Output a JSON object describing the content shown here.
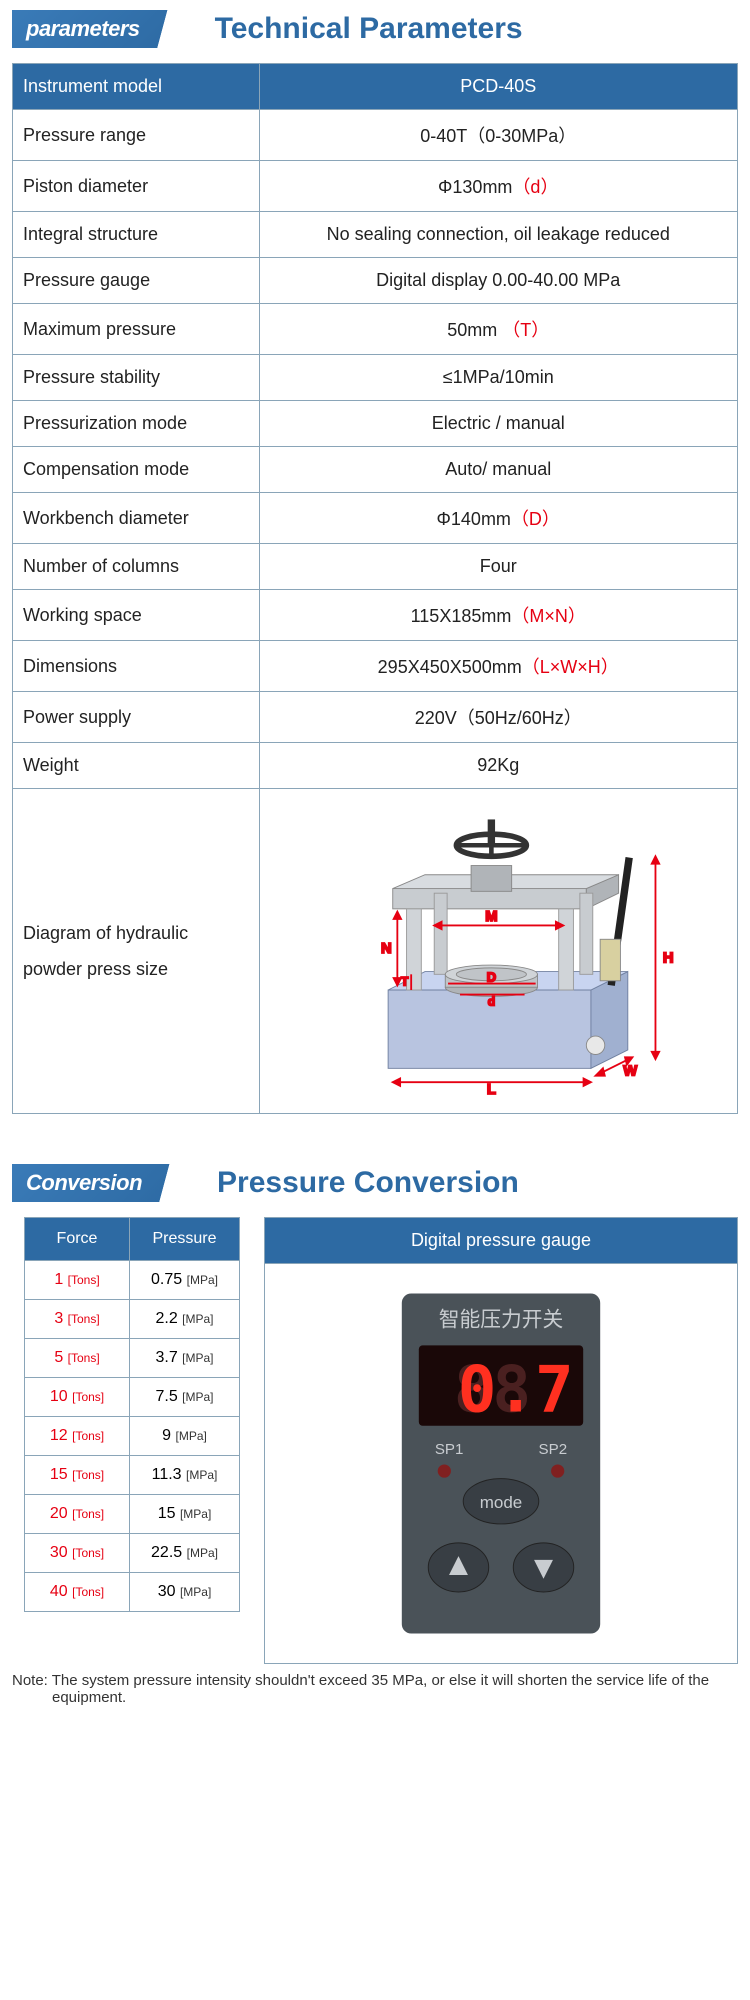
{
  "section1": {
    "tag": "parameters",
    "title": "Technical Parameters"
  },
  "params_table": {
    "header_col1": "Instrument model",
    "header_col2": "PCD-40S",
    "rows": [
      {
        "label": "Pressure range",
        "value": "0-40T（0-30MPa）"
      },
      {
        "label": "Piston diameter",
        "value": "Φ130mm",
        "red": "（d）"
      },
      {
        "label": "Integral structure",
        "value": "No sealing connection, oil leakage reduced"
      },
      {
        "label": "Pressure gauge",
        "value": "Digital display 0.00-40.00 MPa"
      },
      {
        "label": "Maximum pressure",
        "value": "50mm ",
        "red": "（T）"
      },
      {
        "label": "Pressure stability",
        "value": "≤1MPa/10min"
      },
      {
        "label": "Pressurization mode",
        "value": "Electric / manual"
      },
      {
        "label": "Compensation mode",
        "value": "Auto/ manual"
      },
      {
        "label": "Workbench diameter",
        "value": "Φ140mm",
        "red": "（D）"
      },
      {
        "label": "Number of columns",
        "value": "Four"
      },
      {
        "label": "Working space",
        "value": "115X185mm",
        "red": "（M×N）"
      },
      {
        "label": "Dimensions",
        "value": "295X450X500mm",
        "red": "（L×W×H）"
      },
      {
        "label": "Power supply",
        "value": "220V（50Hz/60Hz）"
      },
      {
        "label": "Weight",
        "value": "92Kg"
      }
    ],
    "diagram_label": "Diagram of hydraulic powder press size",
    "diagram": {
      "body_color": "#b8c4e0",
      "frame_color": "#a8b0b8",
      "column_color": "#c8ccd0",
      "dim_color": "#e60012",
      "labels": {
        "M": "M",
        "N": "N",
        "D": "D",
        "d": "d",
        "T": "T",
        "L": "L",
        "W": "W",
        "H": "H"
      }
    }
  },
  "section2": {
    "tag": "Conversion",
    "title": "Pressure Conversion"
  },
  "conv_table": {
    "header_force": "Force",
    "header_pressure": "Pressure",
    "force_unit": "[Tons]",
    "pressure_unit": "[MPa]",
    "rows": [
      {
        "force": "1",
        "pressure": "0.75"
      },
      {
        "force": "3",
        "pressure": "2.2"
      },
      {
        "force": "5",
        "pressure": "3.7"
      },
      {
        "force": "10",
        "pressure": "7.5"
      },
      {
        "force": "12",
        "pressure": "9"
      },
      {
        "force": "15",
        "pressure": "11.3"
      },
      {
        "force": "20",
        "pressure": "15"
      },
      {
        "force": "30",
        "pressure": "22.5"
      },
      {
        "force": "40",
        "pressure": "30"
      }
    ]
  },
  "gauge": {
    "header": "Digital pressure gauge",
    "chinese": "智能压力开关",
    "display": "0.7",
    "sp1": "SP1",
    "sp2": "SP2",
    "mode": "mode",
    "body_color": "#4a5258",
    "display_bg": "#2a1010",
    "digit_color": "#ff3020",
    "digit_off": "#4a2020",
    "text_color": "#c8ccd0"
  },
  "footnote": "Note: The system pressure intensity shouldn't exceed 35 MPa, or else it will shorten the service life of the equipment."
}
